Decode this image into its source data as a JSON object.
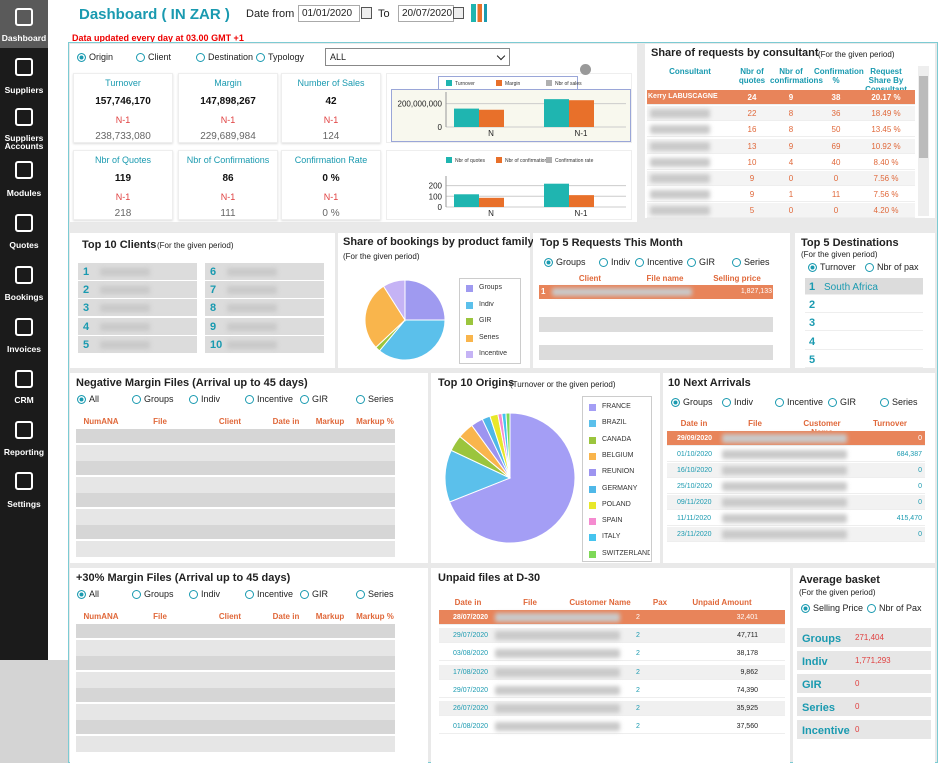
{
  "sidebar": [
    "Dashboard",
    "Suppliers",
    "Suppliers Accounts",
    "Modules",
    "Quotes",
    "Bookings",
    "Invoices",
    "CRM",
    "Reporting",
    "Settings"
  ],
  "header": {
    "title": "Dashboard ( IN ZAR )",
    "date_from_label": "Date from",
    "date_from": "01/01/2020",
    "to_label": "To",
    "date_to": "20/07/2020",
    "notice": "Data updated every day at 03.00 GMT +1"
  },
  "overview": {
    "filters": [
      "Origin",
      "Client",
      "Destination",
      "Typology"
    ],
    "select": "ALL",
    "kpis": [
      {
        "label": "Turnover",
        "value": "157,746,170",
        "prev_label": "N-1",
        "prev": "238,733,080"
      },
      {
        "label": "Margin",
        "value": "147,898,267",
        "prev_label": "N-1",
        "prev": "229,689,984"
      },
      {
        "label": "Number of Sales",
        "value": "42",
        "prev_label": "N-1",
        "prev": "124"
      },
      {
        "label": "Nbr of Quotes",
        "value": "119",
        "prev_label": "N-1",
        "prev": "218"
      },
      {
        "label": "Nbr of Confirmations",
        "value": "86",
        "prev_label": "N-1",
        "prev": "111"
      },
      {
        "label": "Confirmation Rate",
        "value": "0 %",
        "prev_label": "N-1",
        "prev": "0 %"
      }
    ],
    "charts": [
      {
        "type": "bar",
        "categories": [
          "N",
          "N-1"
        ],
        "ylim": [
          0,
          300000000
        ],
        "yticks": [
          0,
          {
            "value": 200000000,
            "label": "200,000,000"
          }
        ],
        "series": [
          {
            "name": "Turnover",
            "color": "#1fb5b0",
            "values": [
              157746170,
              238733080
            ]
          },
          {
            "name": "Margin",
            "color": "#e8702a",
            "values": [
              147898267,
              229689984
            ]
          },
          {
            "name": "Nbr of sales",
            "color": "#b0b0b0",
            "values": [
              42,
              124
            ]
          }
        ]
      },
      {
        "type": "bar",
        "categories": [
          "N",
          "N-1"
        ],
        "ylim": [
          0,
          290
        ],
        "yticks": [
          0,
          100,
          200
        ],
        "series": [
          {
            "name": "Nbr of quotes",
            "color": "#1fb5b0",
            "values": [
              119,
              218
            ]
          },
          {
            "name": "Nbr of confirmation",
            "color": "#e8702a",
            "values": [
              86,
              111
            ]
          },
          {
            "name": "Confirmation rate",
            "color": "#b0b0b0",
            "values": [
              0,
              0
            ]
          }
        ]
      }
    ]
  },
  "consultants": {
    "title": "Share of requests by consultant",
    "subtitle": "(For the given period)",
    "columns": [
      "Consultant",
      "Nbr of quotes",
      "Nbr of confirmations",
      "Confirmation %",
      "Request Share By Consultant"
    ],
    "rows": [
      [
        "Kerry LABUSCAGNE",
        "24",
        "9",
        "38",
        "20.17 %"
      ],
      [
        null,
        "22",
        "8",
        "36",
        "18.49 %"
      ],
      [
        null,
        "16",
        "8",
        "50",
        "13.45 %"
      ],
      [
        null,
        "13",
        "9",
        "69",
        "10.92 %"
      ],
      [
        null,
        "10",
        "4",
        "40",
        "8.40 %"
      ],
      [
        null,
        "9",
        "0",
        "0",
        "7.56 %"
      ],
      [
        null,
        "9",
        "1",
        "11",
        "7.56 %"
      ],
      [
        null,
        "5",
        "0",
        "0",
        "4.20 %"
      ]
    ]
  },
  "top_clients": {
    "title": "Top 10 Clients",
    "subtitle": "(For the given period)",
    "ranks": [
      1,
      2,
      3,
      4,
      5,
      6,
      7,
      8,
      9,
      10
    ]
  },
  "product_family": {
    "type": "pie",
    "title": "Share of bookings by product family",
    "subtitle": "(For the given period)",
    "categories": [
      "Groups",
      "Indiv",
      "GIR",
      "Series",
      "Incentive"
    ],
    "values": [
      25,
      36,
      2,
      28,
      9
    ],
    "colors": [
      "#9f9af0",
      "#5bc0eb",
      "#9bc53d",
      "#f9b54c",
      "#c5b3f5"
    ]
  },
  "top_requests": {
    "title": "Top 5 Requests This Month",
    "filters": [
      "Groups",
      "Indiv",
      "Incentive",
      "GIR",
      "Series"
    ],
    "columns": [
      "Client",
      "File name",
      "Selling price"
    ],
    "rows": [
      [
        1,
        null,
        "1,827,133"
      ]
    ]
  },
  "top_destinations": {
    "title": "Top 5 Destinations",
    "subtitle": "(For the given period)",
    "filters": [
      "Turnover",
      "Nbr of pax"
    ],
    "rows": [
      [
        1,
        "South Africa"
      ],
      [
        2,
        null
      ],
      [
        3,
        null
      ],
      [
        4,
        null
      ],
      [
        5,
        null
      ]
    ]
  },
  "negative_margin": {
    "title": "Negative Margin Files (Arrival up to 45 days)",
    "filters": [
      "All",
      "Groups",
      "Indiv",
      "Incentive",
      "GIR",
      "Series"
    ],
    "columns": [
      "NumANA",
      "File",
      "Client",
      "Date in",
      "Markup",
      "Markup %"
    ]
  },
  "origins": {
    "type": "pie",
    "title": "Top 10 Origins",
    "subtitle": "(Turnover or the given period)",
    "categories": [
      "FRANCE",
      "BRAZIL",
      "CANADA",
      "BELGIUM",
      "REUNION",
      "GERMANY",
      "POLAND",
      "SPAIN",
      "ITALY",
      "SWITZERLAND"
    ],
    "values": [
      69,
      13,
      4,
      4,
      3,
      2,
      2,
      1,
      1,
      1
    ],
    "colors": [
      "#a49ef5",
      "#5bc0eb",
      "#9bc53d",
      "#f9b54c",
      "#9d94f0",
      "#4fb8e8",
      "#e8e82a",
      "#f58bd0",
      "#45c4ef",
      "#7ed957"
    ]
  },
  "next_arrivals": {
    "title": "10 Next Arrivals",
    "filters": [
      "Groups",
      "Indiv",
      "Incentive",
      "GIR",
      "Series"
    ],
    "columns": [
      "Date in",
      "File",
      "Customer Name",
      "Turnover"
    ],
    "rows": [
      [
        "29/09/2020",
        null,
        null,
        "0"
      ],
      [
        "01/10/2020",
        null,
        null,
        "684,387"
      ],
      [
        "16/10/2020",
        null,
        null,
        "0"
      ],
      [
        "25/10/2020",
        null,
        null,
        "0"
      ],
      [
        "09/11/2020",
        null,
        null,
        "0"
      ],
      [
        "11/11/2020",
        null,
        null,
        "415,470"
      ],
      [
        "23/11/2020",
        null,
        null,
        "0"
      ]
    ]
  },
  "margin_30": {
    "title": "+30% Margin Files (Arrival up to 45 days)",
    "filters": [
      "All",
      "Groups",
      "Indiv",
      "Incentive",
      "GIR",
      "Series"
    ],
    "columns": [
      "NumANA",
      "File",
      "Client",
      "Date in",
      "Markup",
      "Markup %"
    ]
  },
  "unpaid": {
    "title": "Unpaid files at D-30",
    "columns": [
      "Date in",
      "File",
      "Customer Name",
      "Pax",
      "Unpaid Amount"
    ],
    "rows": [
      [
        "28/07/2020",
        null,
        null,
        "2",
        "32,401"
      ],
      [
        "29/07/2020",
        null,
        null,
        "2",
        "47,711"
      ],
      [
        "03/08/2020",
        null,
        null,
        "2",
        "38,178"
      ],
      [
        "17/08/2020",
        null,
        null,
        "2",
        "9,862"
      ],
      [
        "29/07/2020",
        null,
        null,
        "2",
        "74,390"
      ],
      [
        "26/07/2020",
        null,
        null,
        "2",
        "35,925"
      ],
      [
        "01/08/2020",
        null,
        null,
        "2",
        "37,560"
      ]
    ]
  },
  "average_basket": {
    "title": "Average basket",
    "subtitle": "(For the given period)",
    "filters": [
      "Selling Price",
      "Nbr of Pax"
    ],
    "rows": [
      [
        "Groups",
        "271,404"
      ],
      [
        "Indiv",
        "1,771,293"
      ],
      [
        "GIR",
        "0"
      ],
      [
        "Series",
        "0"
      ],
      [
        "Incentive",
        "0"
      ]
    ]
  }
}
